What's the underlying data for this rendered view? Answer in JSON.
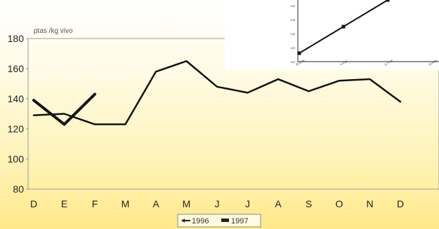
{
  "chart_data": [
    {
      "type": "line",
      "ylabel": "ptas /kg vivo",
      "categories": [
        "D",
        "E",
        "F",
        "M",
        "A",
        "M",
        "J",
        "J",
        "A",
        "S",
        "O",
        "N",
        "D"
      ],
      "ylim": [
        80,
        180
      ],
      "yticks": [
        80,
        100,
        120,
        140,
        160,
        180
      ],
      "grid": false,
      "legend_position": "bottom-center",
      "series": [
        {
          "name": "1996",
          "values": [
            129,
            130,
            123,
            123,
            158,
            165,
            148,
            144,
            153,
            145,
            152,
            153,
            138
          ]
        },
        {
          "name": "1997",
          "values": [
            139,
            123,
            143,
            null,
            null,
            null,
            null,
            null,
            null,
            null,
            null,
            null,
            null
          ]
        }
      ]
    },
    {
      "type": "line",
      "ylim": [
        120,
        142
      ],
      "yticks": [
        120,
        125,
        130,
        135,
        140
      ],
      "categories": [
        "28 E/96",
        "4 F/96",
        "11 F/96",
        "18 F/96"
      ],
      "series": [
        {
          "values": [
            123,
            132.5,
            142,
            null
          ]
        }
      ]
    }
  ]
}
